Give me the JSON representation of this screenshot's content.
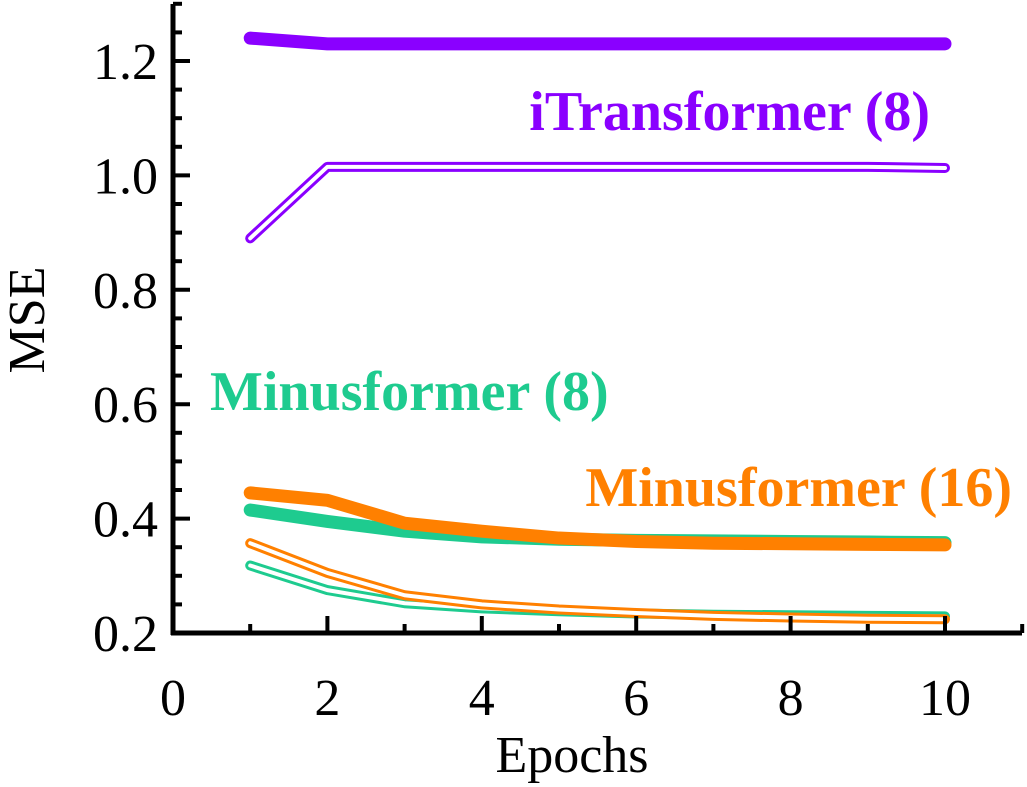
{
  "chart_data": {
    "type": "line",
    "xlabel": "Epochs",
    "ylabel": "MSE",
    "xlim": [
      0,
      11
    ],
    "ylim": [
      0.2,
      1.3
    ],
    "x_ticks": [
      0,
      2,
      4,
      6,
      8,
      10
    ],
    "x_tick_labels": [
      "0",
      "2",
      "4",
      "6",
      "8",
      "10"
    ],
    "y_ticks": [
      0.2,
      0.4,
      0.6,
      0.8,
      1.0,
      1.2
    ],
    "y_tick_labels": [
      "0.2",
      "0.4",
      "0.6",
      "0.8",
      "1.0",
      "1.2"
    ],
    "x": [
      1,
      2,
      3,
      4,
      5,
      6,
      7,
      8,
      9,
      10
    ],
    "groups": [
      {
        "label": "iTransformer (8)",
        "color": "#8a00ff",
        "series": [
          {
            "style": "solid",
            "values": [
              1.24,
              1.23,
              1.23,
              1.23,
              1.23,
              1.23,
              1.23,
              1.23,
              1.23,
              1.23
            ]
          },
          {
            "style": "hollow",
            "values": [
              0.89,
              1.015,
              1.015,
              1.015,
              1.015,
              1.015,
              1.015,
              1.015,
              1.015,
              1.013
            ]
          }
        ]
      },
      {
        "label": "Minusformer (8)",
        "color": "#1ecb8f",
        "series": [
          {
            "style": "solid",
            "values": [
              0.415,
              0.395,
              0.378,
              0.368,
              0.364,
              0.362,
              0.361,
              0.36,
              0.359,
              0.358
            ]
          },
          {
            "style": "hollow",
            "values": [
              0.318,
              0.275,
              0.252,
              0.243,
              0.238,
              0.234,
              0.232,
              0.231,
              0.23,
              0.229
            ]
          }
        ]
      },
      {
        "label": "Minusformer (16)",
        "color": "#ff8000",
        "series": [
          {
            "style": "solid",
            "values": [
              0.445,
              0.432,
              0.392,
              0.378,
              0.366,
              0.36,
              0.357,
              0.356,
              0.355,
              0.354
            ]
          },
          {
            "style": "hollow",
            "values": [
              0.357,
              0.305,
              0.266,
              0.25,
              0.241,
              0.235,
              0.23,
              0.227,
              0.225,
              0.224
            ]
          }
        ]
      }
    ]
  }
}
